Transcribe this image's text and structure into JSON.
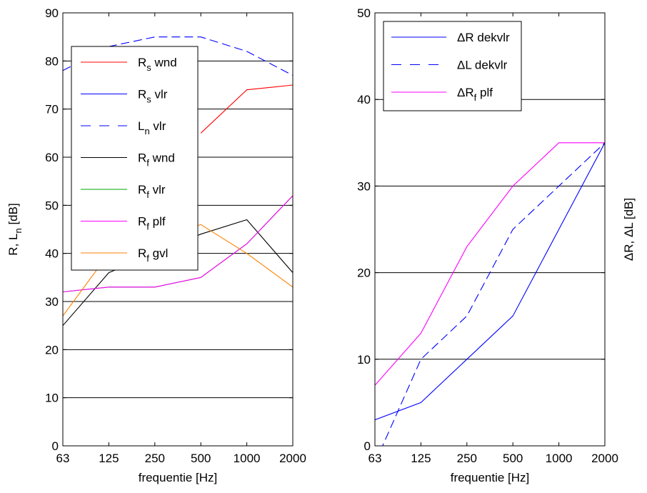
{
  "chart_data": [
    {
      "type": "line",
      "categories": [
        "63",
        "125",
        "250",
        "500",
        "1000",
        "2000"
      ],
      "xlabel": "frequentie [Hz]",
      "ylabel": {
        "main": "R, L",
        "sub": "n",
        "unit": " [dB]"
      },
      "ylim": [
        0,
        90
      ],
      "yticks": [
        0,
        10,
        20,
        30,
        40,
        50,
        60,
        70,
        80,
        90
      ],
      "grid": "horizontal",
      "legend_position": "upper-left",
      "series": [
        {
          "name": "R_s wnd",
          "main": "R",
          "sub": "s",
          "rest": " wnd",
          "color": "#ff0000",
          "dash": "solid",
          "values": [
            null,
            null,
            null,
            65,
            74,
            75
          ]
        },
        {
          "name": "R_s vlr",
          "main": "R",
          "sub": "s",
          "rest": " vlr",
          "color": "#0000ff",
          "dash": "solid",
          "values": [
            null,
            null,
            null,
            null,
            null,
            null
          ]
        },
        {
          "name": "L_n vlr",
          "main": "L",
          "sub": "n",
          "rest": " vlr",
          "color": "#0000ff",
          "dash": "dashed",
          "values": [
            78,
            83,
            85,
            85,
            82,
            77
          ]
        },
        {
          "name": "R_f wnd",
          "main": "R",
          "sub": "f",
          "rest": " wnd",
          "color": "#000000",
          "dash": "solid",
          "values": [
            25,
            36,
            40,
            44,
            47,
            36
          ]
        },
        {
          "name": "R_f vlr",
          "main": "R",
          "sub": "f",
          "rest": " vlr",
          "color": "#00aa00",
          "dash": "solid",
          "values": [
            32,
            33,
            33,
            35,
            42,
            52
          ]
        },
        {
          "name": "R_f plf",
          "main": "R",
          "sub": "f",
          "rest": " plf",
          "color": "#ff00ff",
          "dash": "solid",
          "values": [
            32,
            33,
            33,
            35,
            42,
            52
          ]
        },
        {
          "name": "R_f gvl",
          "main": "R",
          "sub": "f",
          "rest": " gvl",
          "color": "#ff8000",
          "dash": "solid",
          "values": [
            27,
            40,
            43,
            46,
            40,
            33
          ]
        }
      ]
    },
    {
      "type": "line",
      "categories": [
        "63",
        "125",
        "250",
        "500",
        "1000",
        "2000"
      ],
      "xlabel": "frequentie [Hz]",
      "ylabel": {
        "main": "ΔR, ΔL [dB]"
      },
      "ylim": [
        0,
        50
      ],
      "yticks": [
        0,
        10,
        20,
        30,
        40,
        50
      ],
      "grid": "horizontal",
      "legend_position": "upper-left",
      "series": [
        {
          "name": "ΔR dekvlr",
          "main": "ΔR",
          "sub": "",
          "rest": " dekvlr",
          "color": "#0000ff",
          "dash": "solid",
          "values": [
            3,
            5,
            10,
            15,
            25,
            35
          ]
        },
        {
          "name": "ΔL dekvlr",
          "main": "ΔL",
          "sub": "",
          "rest": " dekvlr",
          "color": "#0000ff",
          "dash": "dashed",
          "values": [
            -2,
            10,
            15,
            25,
            30,
            35
          ]
        },
        {
          "name": "ΔR_f plf",
          "main": "ΔR",
          "sub": "f",
          "rest": " plf",
          "color": "#ff00ff",
          "dash": "solid",
          "values": [
            7,
            13,
            23,
            30,
            35,
            35
          ]
        }
      ]
    }
  ]
}
